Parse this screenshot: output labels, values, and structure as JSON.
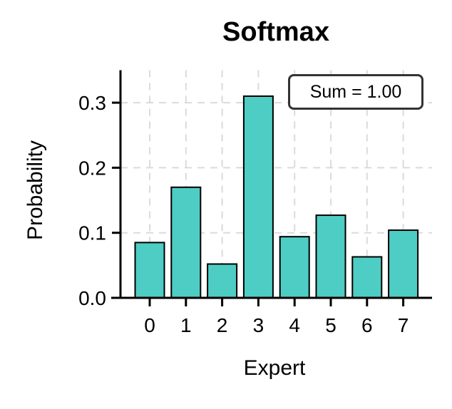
{
  "chart_data": {
    "type": "bar",
    "title": "Softmax",
    "xlabel": "Expert",
    "ylabel": "Probability",
    "categories": [
      "0",
      "1",
      "2",
      "3",
      "4",
      "5",
      "6",
      "7"
    ],
    "values": [
      0.085,
      0.17,
      0.052,
      0.31,
      0.094,
      0.127,
      0.063,
      0.104
    ],
    "ylim": [
      0,
      0.35
    ],
    "yticks": [
      "0.0",
      "0.1",
      "0.2",
      "0.3"
    ],
    "grid": true,
    "bar_color": "#4ECDC4",
    "annotation": "Sum = 1.00"
  }
}
